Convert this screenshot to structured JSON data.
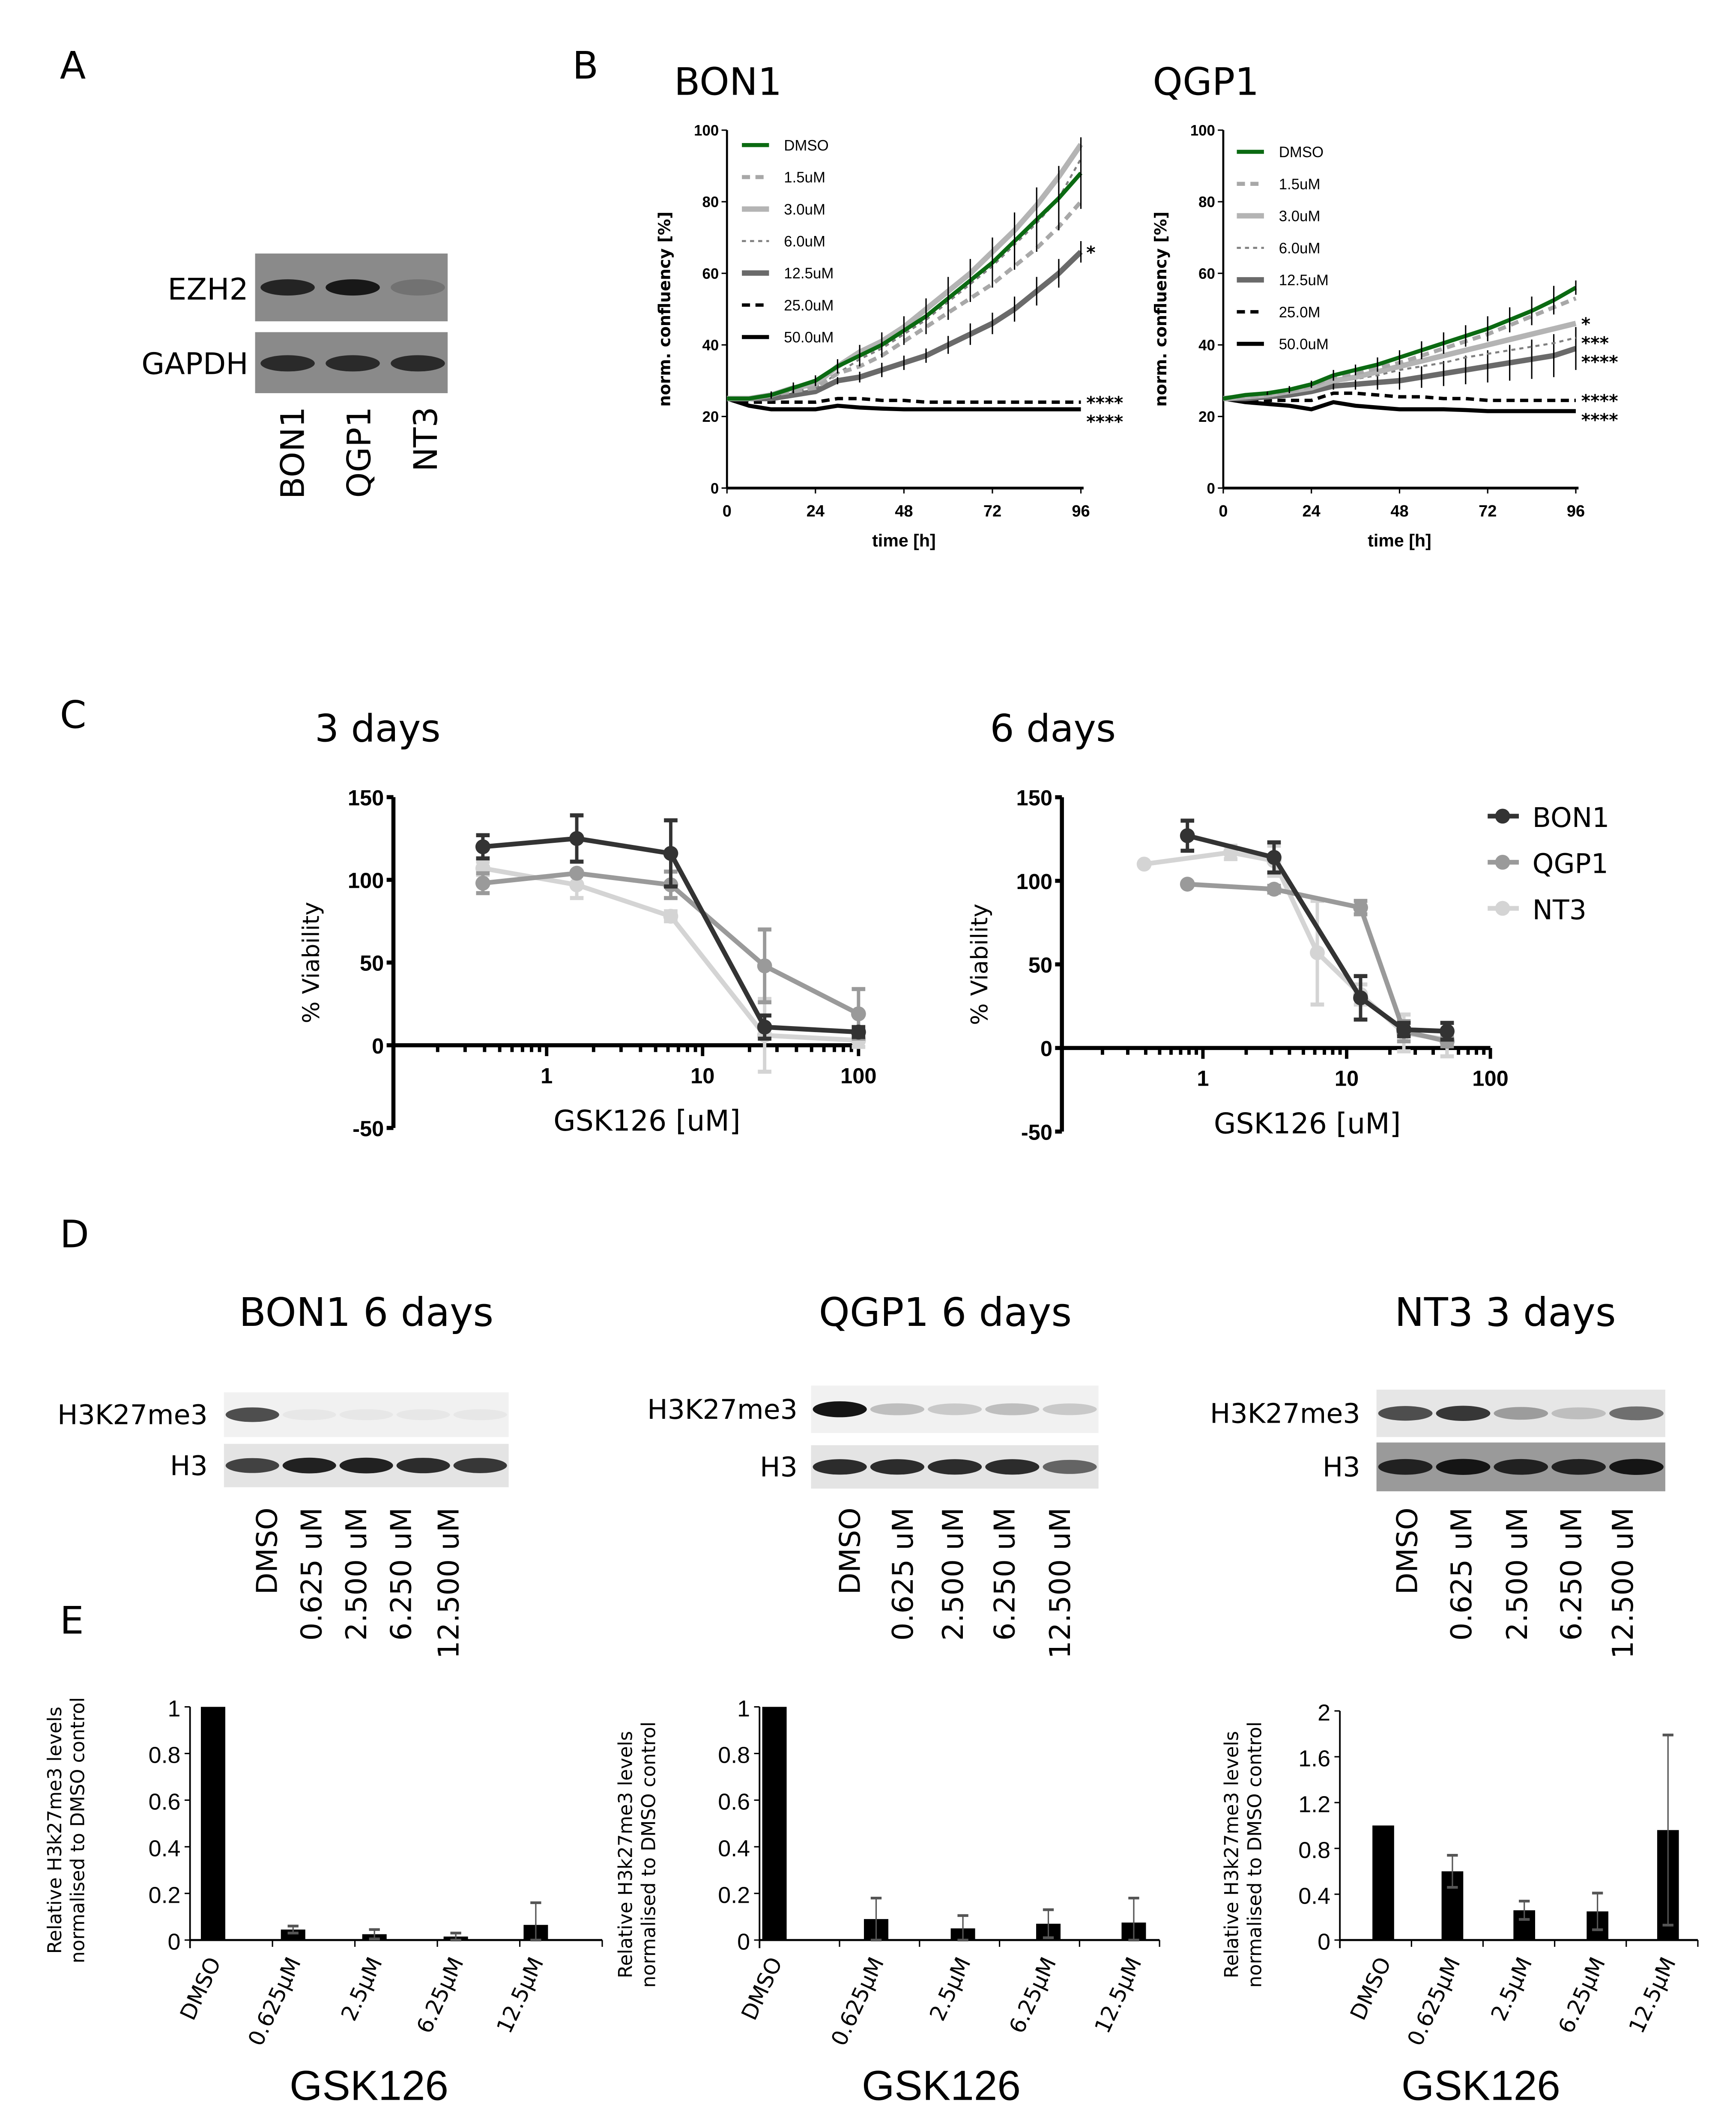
{
  "panel_letters": {
    "a": "A",
    "b": "B",
    "c": "C",
    "d": "D",
    "e": "E"
  },
  "panel_a": {
    "rows": [
      "EZH2",
      "GAPDH"
    ],
    "lanes": [
      "BON1",
      "QGP1",
      "NT3"
    ],
    "band_intensity": {
      "EZH2": [
        0.85,
        0.95,
        0.2
      ],
      "GAPDH": [
        0.8,
        0.8,
        0.8
      ]
    }
  },
  "chart_data": [
    {
      "id": "b_bon1",
      "type": "line",
      "title": "BON1",
      "xlabel": "time [h]",
      "ylabel": "norm. confluency [%]",
      "xlim": [
        0,
        96
      ],
      "ylim": [
        0,
        100
      ],
      "xticks": [
        "0",
        "24",
        "48",
        "72",
        "96"
      ],
      "yticks": [
        "0",
        "20",
        "40",
        "60",
        "80",
        "100"
      ],
      "x": [
        0,
        6,
        12,
        18,
        24,
        30,
        36,
        42,
        48,
        54,
        60,
        66,
        72,
        78,
        84,
        90,
        96
      ],
      "legend_position": "top-left",
      "series": [
        {
          "name": "DMSO",
          "color": "#0b6a12",
          "style": "solid",
          "values": [
            25,
            25,
            26,
            28,
            30,
            34,
            37,
            40,
            44,
            48,
            53,
            58,
            63,
            69,
            75,
            81,
            88
          ],
          "err": [
            0,
            0,
            1,
            1.5,
            1.5,
            2,
            3,
            3.5,
            4,
            5,
            6,
            6,
            7,
            8,
            9,
            9,
            10
          ]
        },
        {
          "name": "1.5uM",
          "color": "#a8a8a8",
          "style": "dash",
          "values": [
            25,
            25,
            26,
            27,
            28,
            32,
            34,
            37,
            41,
            45,
            49,
            53,
            57,
            62,
            67,
            73,
            80
          ]
        },
        {
          "name": "3.0uM",
          "color": "#b4b4b4",
          "style": "thick",
          "values": [
            25,
            25,
            26,
            28,
            29,
            34,
            38,
            41,
            45,
            50,
            55,
            60,
            66,
            72,
            79,
            87,
            96
          ]
        },
        {
          "name": "6.0uM",
          "color": "#808080",
          "style": "thin-dash",
          "values": [
            25,
            25,
            26,
            27,
            28,
            32,
            36,
            39,
            43,
            47,
            52,
            57,
            62,
            68,
            74,
            81,
            92
          ]
        },
        {
          "name": "12.5uM",
          "color": "#6a6a6a",
          "style": "thick",
          "values": [
            25,
            25,
            25,
            26,
            27,
            30,
            31,
            33,
            35,
            37,
            40,
            43,
            46,
            50,
            55,
            60,
            66
          ],
          "err": [
            0,
            0,
            0,
            0,
            0,
            1,
            1.5,
            2,
            2,
            2,
            2.5,
            3,
            3,
            3.5,
            4,
            4,
            3
          ]
        },
        {
          "name": "25.0uM",
          "color": "#000000",
          "style": "dash-black",
          "values": [
            25,
            24,
            24,
            24,
            24,
            25,
            25,
            24.5,
            24.5,
            24,
            24,
            24,
            24,
            24,
            24,
            24,
            24
          ]
        },
        {
          "name": "50.0uM",
          "color": "#000000",
          "style": "solid-black",
          "values": [
            25,
            23,
            22,
            22,
            22,
            23,
            22.5,
            22.2,
            22,
            22,
            22,
            22,
            22,
            22,
            22,
            22,
            22
          ]
        }
      ],
      "annotations": [
        {
          "series": "12.5uM",
          "text": "*"
        },
        {
          "series": "25.0uM",
          "text": "****"
        },
        {
          "series": "50.0uM",
          "text": "****"
        }
      ]
    },
    {
      "id": "b_qgp1",
      "type": "line",
      "title": "QGP1",
      "xlabel": "time [h]",
      "ylabel": "norm. confluency [%]",
      "xlim": [
        0,
        96
      ],
      "ylim": [
        0,
        100
      ],
      "xticks": [
        "0",
        "24",
        "48",
        "72",
        "96"
      ],
      "yticks": [
        "0",
        "20",
        "40",
        "60",
        "80",
        "100"
      ],
      "x": [
        0,
        6,
        12,
        18,
        24,
        30,
        36,
        42,
        48,
        54,
        60,
        66,
        72,
        78,
        84,
        90,
        96
      ],
      "legend_position": "top-left",
      "series": [
        {
          "name": "DMSO",
          "color": "#0b6a12",
          "style": "solid",
          "values": [
            25,
            26,
            26.5,
            27.5,
            29,
            31.5,
            33,
            34.5,
            36.5,
            38.5,
            40.5,
            42.5,
            44.5,
            47,
            49.5,
            52.5,
            56
          ],
          "err": [
            0,
            0,
            0.5,
            1,
            1,
            1.5,
            1.5,
            2,
            2,
            2.5,
            3,
            3,
            3.5,
            3.5,
            4,
            4,
            2
          ]
        },
        {
          "name": "1.5uM",
          "color": "#a8a8a8",
          "style": "dash",
          "values": [
            25,
            25.5,
            26,
            27,
            28.5,
            31,
            32,
            33.5,
            35,
            37,
            39,
            41,
            43,
            45.5,
            48,
            50.5,
            53
          ]
        },
        {
          "name": "3.0uM",
          "color": "#b4b4b4",
          "style": "thick",
          "values": [
            25,
            25.5,
            26,
            27,
            28,
            30,
            31,
            32.5,
            34,
            35.5,
            37,
            38.5,
            40,
            41.5,
            43,
            44.5,
            46
          ]
        },
        {
          "name": "6.0uM",
          "color": "#808080",
          "style": "thin-dash",
          "values": [
            25,
            25,
            26,
            26.5,
            27.5,
            29.5,
            30.5,
            31.5,
            33,
            34,
            35,
            36.5,
            37.5,
            38.5,
            39.5,
            40.5,
            42
          ]
        },
        {
          "name": "12.5uM",
          "color": "#6a6a6a",
          "style": "thick",
          "values": [
            25,
            25,
            25.5,
            26,
            27,
            28.5,
            29,
            29.5,
            30,
            31,
            32,
            33,
            34,
            35,
            36,
            37,
            39
          ],
          "err": [
            0,
            0,
            0,
            0,
            0,
            1,
            1.5,
            2,
            2.5,
            3,
            3.5,
            4,
            4.5,
            5,
            5.5,
            6,
            6
          ]
        },
        {
          "name": "25.0M",
          "color": "#000000",
          "style": "dash-black",
          "values": [
            25,
            24.5,
            24.5,
            24.5,
            24.5,
            26.5,
            26.5,
            26,
            25.5,
            25.5,
            25,
            25,
            24.5,
            24.5,
            24.5,
            24.5,
            24.5
          ]
        },
        {
          "name": "50.0uM",
          "color": "#000000",
          "style": "solid-black",
          "values": [
            25,
            24,
            23.5,
            23,
            22,
            24,
            23,
            22.5,
            22,
            22,
            22,
            21.8,
            21.5,
            21.5,
            21.5,
            21.5,
            21.5
          ]
        }
      ],
      "annotations": [
        {
          "series": "3.0uM",
          "text": "*"
        },
        {
          "series": "6.0uM",
          "text": "***"
        },
        {
          "series": "12.5uM",
          "text": "****"
        },
        {
          "series": "25.0M",
          "text": "****"
        },
        {
          "series": "50.0uM",
          "text": "****"
        }
      ]
    },
    {
      "id": "c_3days",
      "type": "line",
      "title": "3 days",
      "xlabel": "GSK126 [uM]",
      "ylabel": "% Viability",
      "xscale": "log",
      "xlim": [
        0.1,
        100
      ],
      "ylim": [
        -50,
        150
      ],
      "xticks": [
        "1",
        "10",
        "100"
      ],
      "yticks": [
        "-50",
        "0",
        "50",
        "100",
        "150"
      ],
      "series": [
        {
          "name": "BON1",
          "color": "#333333",
          "x": [
            0.39,
            1.56,
            6.25,
            25,
            100
          ],
          "values": [
            120,
            125,
            116,
            11,
            8
          ],
          "err": [
            7,
            14,
            20,
            7,
            3
          ]
        },
        {
          "name": "QGP1",
          "color": "#9a9a9a",
          "x": [
            0.39,
            1.56,
            6.25,
            25,
            100
          ],
          "values": [
            98,
            104,
            97,
            48,
            19
          ],
          "err": [
            6,
            0,
            8,
            22,
            15
          ]
        },
        {
          "name": "NT3",
          "color": "#d4d4d4",
          "x": [
            0.39,
            1.56,
            6.25,
            25,
            100
          ],
          "values": [
            107,
            97,
            78,
            6,
            3
          ],
          "err": [
            4,
            8,
            3,
            22,
            4
          ]
        }
      ]
    },
    {
      "id": "c_6days",
      "type": "line",
      "title": "6 days",
      "xlabel": "GSK126 [uM]",
      "ylabel": "% Viability",
      "xscale": "log",
      "xlim": [
        0.1,
        100
      ],
      "ylim": [
        -50,
        150
      ],
      "xticks": [
        "1",
        "10",
        "100"
      ],
      "yticks": [
        "-50",
        "0",
        "50",
        "100",
        "150"
      ],
      "legend_position": "right",
      "series": [
        {
          "name": "BON1",
          "color": "#333333",
          "x": [
            0.78,
            3.125,
            12.5,
            25,
            50
          ],
          "values": [
            127,
            114,
            30,
            11,
            10
          ],
          "err": [
            9,
            9,
            13,
            4,
            5
          ]
        },
        {
          "name": "QGP1",
          "color": "#9a9a9a",
          "x": [
            0.78,
            3.125,
            12.5,
            25,
            50
          ],
          "values": [
            98,
            95,
            84,
            10,
            4
          ],
          "err": [
            0,
            2,
            4,
            6,
            3
          ]
        },
        {
          "name": "NT3",
          "color": "#d4d4d4",
          "x": [
            0.39,
            1.56,
            3.125,
            6.25,
            12.5,
            25,
            50
          ],
          "values": [
            110,
            117,
            112,
            57,
            32,
            9,
            5
          ],
          "err": [
            0,
            4,
            9,
            31,
            6,
            11,
            10
          ]
        }
      ]
    },
    {
      "id": "e_bon1",
      "type": "bar",
      "xlabel": "GSK126",
      "ylabel": [
        "Relative H3k27me3 levels",
        "normalised to DMSO control"
      ],
      "categories": [
        "DMSO",
        "0.625µM",
        "2.5µM",
        "6.25µM",
        "12.5µM"
      ],
      "values": [
        1,
        0.045,
        0.025,
        0.015,
        0.065
      ],
      "err": [
        0,
        0.015,
        0.02,
        0.015,
        0.095
      ],
      "ylim": [
        0,
        1
      ],
      "yticks": [
        "0",
        "0.2",
        "0.4",
        "0.6",
        "0.8",
        "1"
      ]
    },
    {
      "id": "e_qgp1",
      "type": "bar",
      "xlabel": "GSK126",
      "ylabel": [
        "Relative H3k27me3 levels",
        "normalised to DMSO control"
      ],
      "categories": [
        "DMSO",
        "0.625µM",
        "2.5µM",
        "6.25µM",
        "12.5µM"
      ],
      "values": [
        1,
        0.09,
        0.05,
        0.07,
        0.075
      ],
      "err": [
        0,
        0.09,
        0.055,
        0.06,
        0.105
      ],
      "ylim": [
        0,
        1
      ],
      "yticks": [
        "0",
        "0.2",
        "0.4",
        "0.6",
        "0.8",
        "1"
      ]
    },
    {
      "id": "e_nt3",
      "type": "bar",
      "xlabel": "GSK126",
      "ylabel": [
        "Relative H3k27me3 levels",
        "normalised to DMSO control"
      ],
      "categories": [
        "DMSO",
        "0.625µM",
        "2.5µM",
        "6.25µM",
        "12.5µM"
      ],
      "values": [
        1,
        0.6,
        0.26,
        0.25,
        0.96
      ],
      "err": [
        0,
        0.14,
        0.08,
        0.16,
        0.83
      ],
      "ylim": [
        0,
        2
      ],
      "yticks": [
        "0",
        "0.4",
        "0.8",
        "1.2",
        "1.6",
        "2"
      ]
    }
  ],
  "panel_d": {
    "blots": [
      {
        "title": "BON1 6 days",
        "rows": [
          "H3K27me3",
          "H3"
        ],
        "lanes": [
          "DMSO",
          "0.625 uM",
          "2.500 uM",
          "6.250 uM",
          "12.500 uM"
        ],
        "band_intensity": {
          "H3K27me3": [
            0.7,
            0.02,
            0.02,
            0.02,
            0.02
          ],
          "H3": [
            0.75,
            0.9,
            0.9,
            0.85,
            0.8
          ]
        },
        "dark_background": false
      },
      {
        "title": "QGP1 6 days",
        "rows": [
          "H3K27me3",
          "H3"
        ],
        "lanes": [
          "DMSO",
          "0.625 uM",
          "2.500 uM",
          "6.250 uM",
          "12.500 uM"
        ],
        "band_intensity": {
          "H3K27me3": [
            0.95,
            0.2,
            0.15,
            0.2,
            0.15
          ],
          "H3": [
            0.85,
            0.85,
            0.85,
            0.85,
            0.6
          ]
        },
        "dark_background": false
      },
      {
        "title": "NT3 3 days",
        "rows": [
          "H3K27me3",
          "H3"
        ],
        "lanes": [
          "DMSO",
          "0.625 uM",
          "2.500 uM",
          "6.250 uM",
          "12.500 uM"
        ],
        "band_intensity": {
          "H3K27me3": [
            0.7,
            0.8,
            0.35,
            0.2,
            0.55
          ],
          "H3": [
            0.9,
            0.95,
            0.9,
            0.9,
            0.95
          ],
          "dummy": []
        },
        "dark_background": true
      }
    ]
  }
}
